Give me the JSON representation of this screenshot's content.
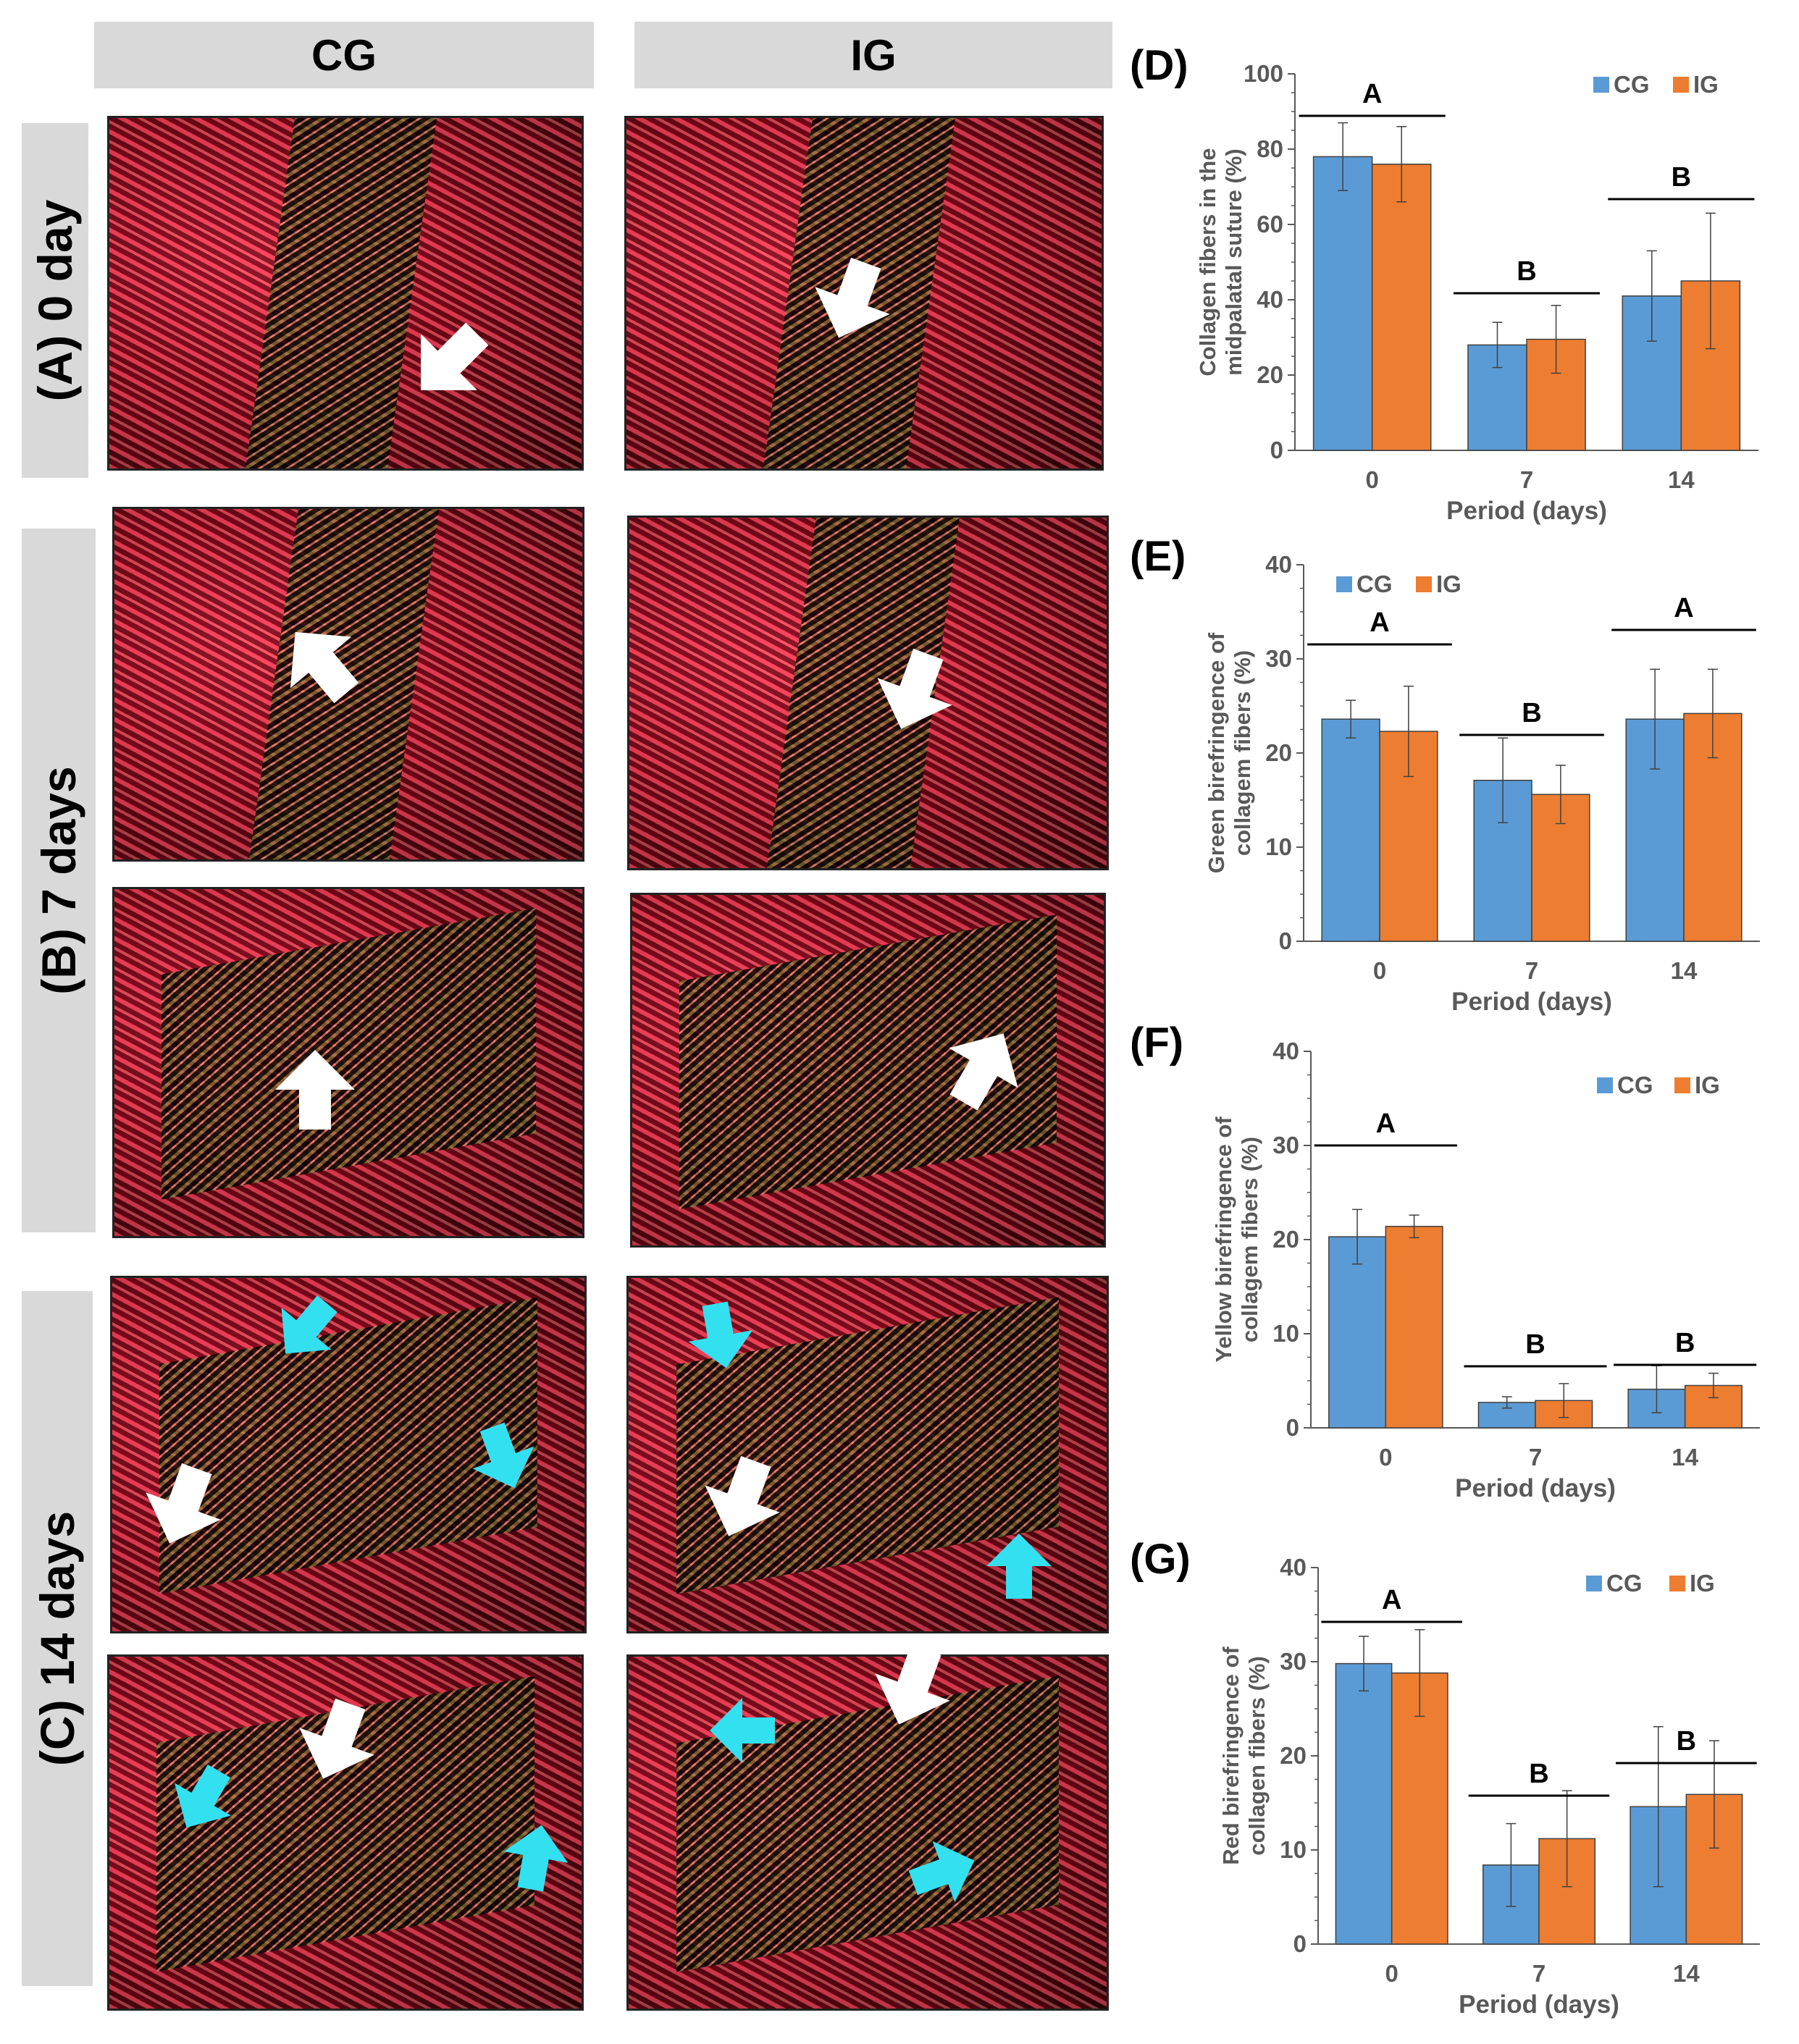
{
  "columns": {
    "cg": "CG",
    "ig": "IG"
  },
  "rows": {
    "a": "(A) 0 day",
    "b": "(B) 7 days",
    "c": "(C) 14 days"
  },
  "colors": {
    "cg": "#5b9bd5",
    "ig": "#ed7d31",
    "arrow_white": "#ffffff",
    "arrow_cyan": "#33e0f0",
    "header_bg": "#d9d9d9"
  },
  "chart_data": [
    {
      "panel": "(D)",
      "type": "bar",
      "title": "",
      "ylabel": [
        "Collagen fibers in the",
        "midpalatal suture (%)"
      ],
      "xlabel": "Period (days)",
      "categories": [
        "0",
        "7",
        "14"
      ],
      "ylim": [
        0,
        100
      ],
      "yticks": [
        0,
        20,
        40,
        60,
        80,
        100
      ],
      "legend": "top-right",
      "series": [
        {
          "name": "CG",
          "values": [
            78,
            28,
            41
          ],
          "errors": [
            9,
            6,
            12
          ]
        },
        {
          "name": "IG",
          "values": [
            76,
            29.5,
            45
          ],
          "errors": [
            10,
            9,
            18
          ]
        }
      ],
      "significance": [
        "A",
        "B",
        "B"
      ]
    },
    {
      "panel": "(E)",
      "type": "bar",
      "ylabel": [
        "Green birefringence of",
        "collagem fibers (%)"
      ],
      "xlabel": "Period (days)",
      "categories": [
        "0",
        "7",
        "14"
      ],
      "ylim": [
        0,
        40
      ],
      "yticks": [
        0,
        10,
        20,
        30,
        40
      ],
      "legend": "top-left",
      "series": [
        {
          "name": "CG",
          "values": [
            23.6,
            17.1,
            23.6
          ],
          "errors": [
            2,
            4.5,
            5.3
          ]
        },
        {
          "name": "IG",
          "values": [
            22.3,
            15.6,
            24.2
          ],
          "errors": [
            4.8,
            3.1,
            4.7
          ]
        }
      ],
      "significance": [
        "A",
        "B",
        "A"
      ]
    },
    {
      "panel": "(F)",
      "type": "bar",
      "ylabel": [
        "Yellow birefringence of",
        "collagem fibers (%)"
      ],
      "xlabel": "Period (days)",
      "categories": [
        "0",
        "7",
        "14"
      ],
      "ylim": [
        0,
        40
      ],
      "yticks": [
        0,
        10,
        20,
        30,
        40
      ],
      "legend": "top-right",
      "series": [
        {
          "name": "CG",
          "values": [
            20.3,
            2.7,
            4.1
          ],
          "errors": [
            2.9,
            0.6,
            2.5
          ]
        },
        {
          "name": "IG",
          "values": [
            21.4,
            2.9,
            4.5
          ],
          "errors": [
            1.2,
            1.8,
            1.3
          ]
        }
      ],
      "significance": [
        "A",
        "B",
        "B"
      ]
    },
    {
      "panel": "(G)",
      "type": "bar",
      "ylabel": [
        "Red birefringence of",
        "collagen fibers (%)"
      ],
      "xlabel": "Period (days)",
      "categories": [
        "0",
        "7",
        "14"
      ],
      "ylim": [
        0,
        40
      ],
      "yticks": [
        0,
        10,
        20,
        30,
        40
      ],
      "legend": "top-right",
      "series": [
        {
          "name": "CG",
          "values": [
            29.8,
            8.4,
            14.6
          ],
          "errors": [
            2.9,
            4.4,
            8.5
          ]
        },
        {
          "name": "IG",
          "values": [
            28.8,
            11.2,
            15.9
          ],
          "errors": [
            4.6,
            5.1,
            5.7
          ]
        }
      ],
      "significance": [
        "A",
        "B",
        "B"
      ]
    }
  ]
}
